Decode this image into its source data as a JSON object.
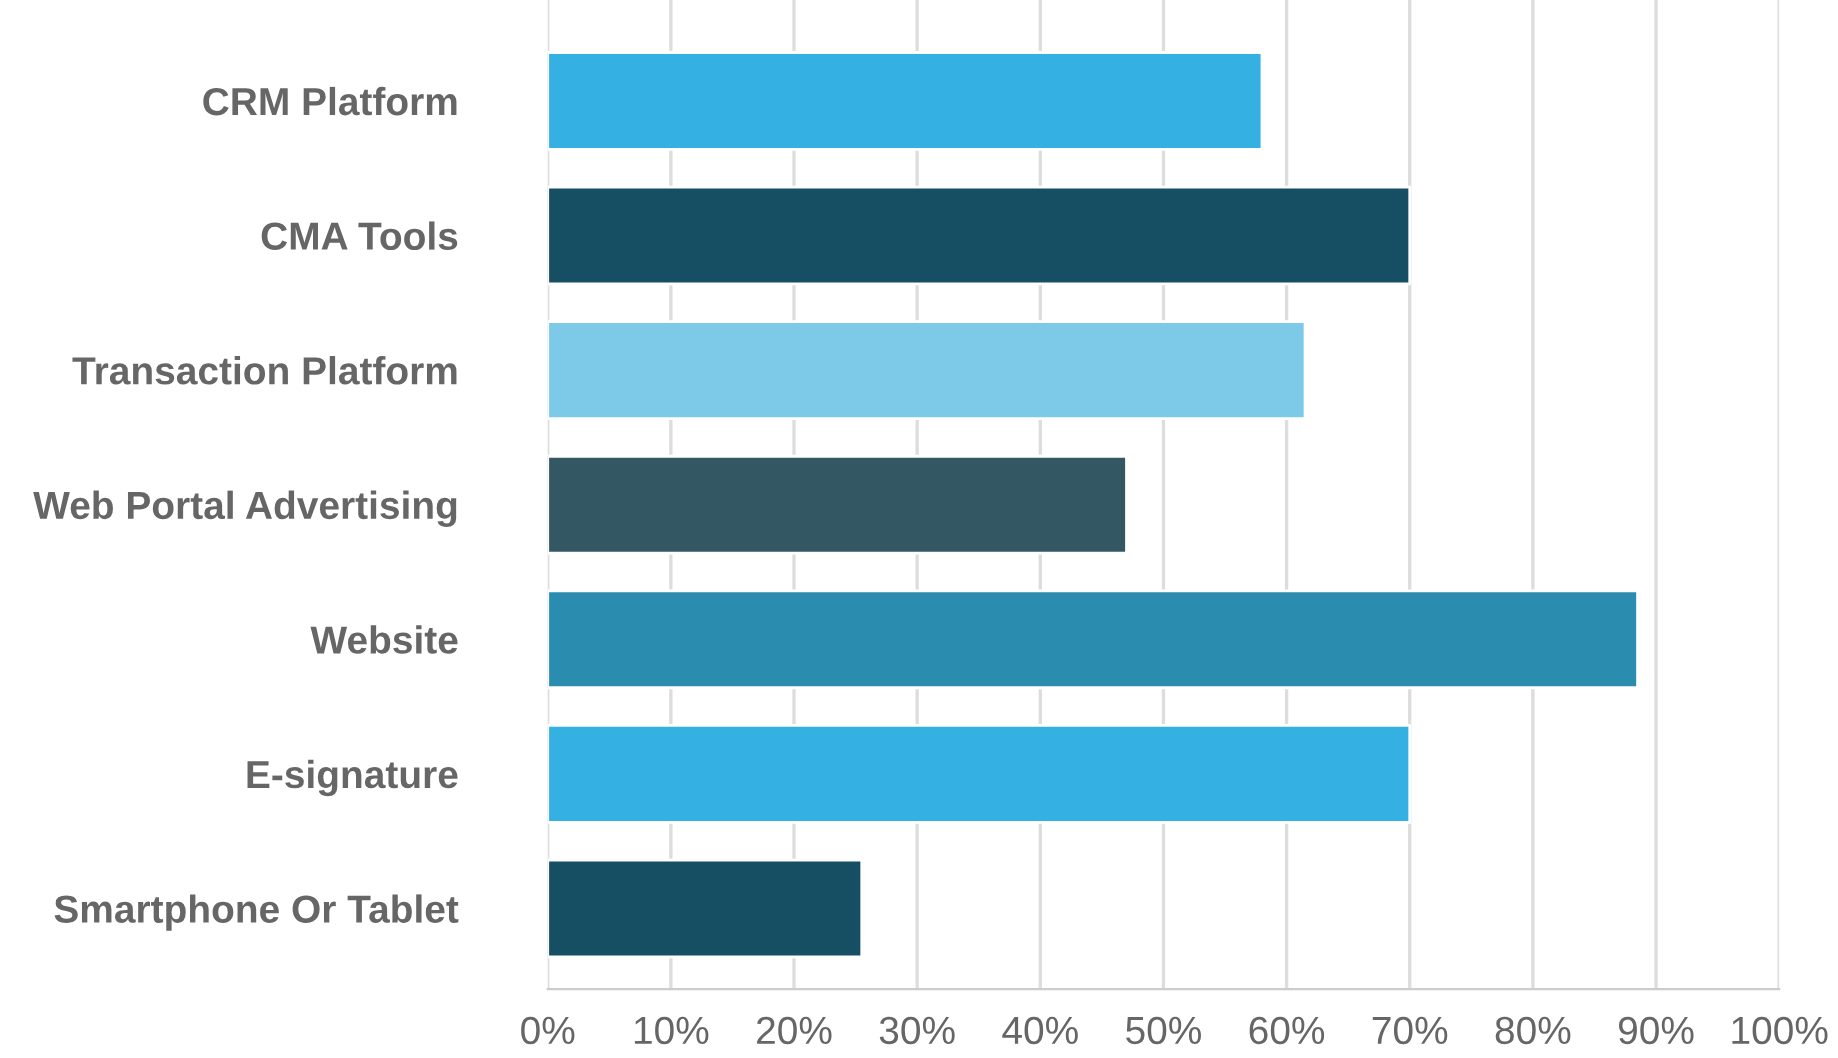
{
  "chart_data": {
    "type": "bar",
    "orientation": "horizontal",
    "categories": [
      "CRM Platform",
      "CMA Tools",
      "Transaction Platform",
      "Web Portal Advertising",
      "Website",
      "E-signature",
      "Smartphone Or Tablet"
    ],
    "values": [
      58,
      70,
      61.5,
      47,
      88.5,
      70,
      25.5
    ],
    "colors": [
      "#35b0e2",
      "#164f63",
      "#7dcae8",
      "#335763",
      "#2a8db0",
      "#35b0e2",
      "#164f63"
    ],
    "xlim": [
      0,
      100
    ],
    "xticks": [
      {
        "value": 0,
        "label": "0%"
      },
      {
        "value": 10,
        "label": "10%"
      },
      {
        "value": 20,
        "label": "20%"
      },
      {
        "value": 30,
        "label": "30%"
      },
      {
        "value": 40,
        "label": "40%"
      },
      {
        "value": 50,
        "label": "50%"
      },
      {
        "value": 60,
        "label": "60%"
      },
      {
        "value": 70,
        "label": "70%"
      },
      {
        "value": 80,
        "label": "80%"
      },
      {
        "value": 90,
        "label": "90%"
      },
      {
        "value": 100,
        "label": "100%"
      }
    ],
    "grid": "x"
  }
}
